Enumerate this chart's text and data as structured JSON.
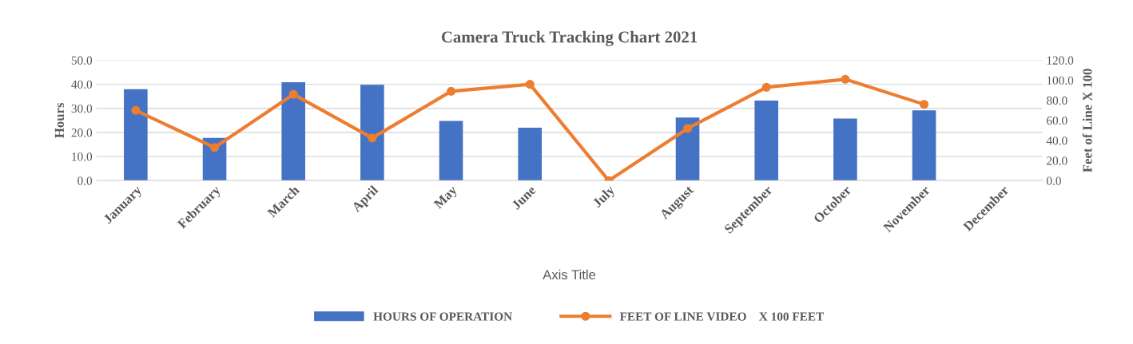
{
  "chart_data": {
    "type": "bar",
    "title": "Camera Truck Tracking Chart 2021",
    "xlabel": "Axis Title",
    "ylabel": "Hours",
    "y2label": "Feet of Line X 100",
    "categories": [
      "January",
      "February",
      "March",
      "April",
      "May",
      "June",
      "July",
      "August",
      "September",
      "October",
      "November",
      "December"
    ],
    "series": [
      {
        "name": "HOURS OF OPERATION",
        "color": "#4472c4",
        "values": [
          38,
          17.7,
          40.9,
          39.8,
          24.8,
          22,
          null,
          26.2,
          33.2,
          25.8,
          29.2,
          null
        ]
      },
      {
        "name": "FEET OF LINE VIDEO    X 100 FEET",
        "type": "line",
        "axis": "y2",
        "color": "#ed7d31",
        "marker": "circle",
        "values": [
          70,
          33,
          86,
          42.5,
          89,
          96,
          0,
          52,
          93,
          101,
          76,
          null
        ]
      }
    ],
    "ylim": [
      0,
      50
    ],
    "yticks": [
      {
        "value": 0,
        "label": "0.0"
      },
      {
        "value": 10,
        "label": "10.0"
      },
      {
        "value": 20,
        "label": "20.0"
      },
      {
        "value": 30,
        "label": "30.0"
      },
      {
        "value": 40,
        "label": "40.0"
      },
      {
        "value": 50,
        "label": "50.0"
      }
    ],
    "y2lim": [
      0,
      120
    ],
    "y2ticks": [
      {
        "value": 0,
        "label": "0.0"
      },
      {
        "value": 20,
        "label": "20.0"
      },
      {
        "value": 40,
        "label": "40.0"
      },
      {
        "value": 60,
        "label": "60.0"
      },
      {
        "value": 80,
        "label": "80.0"
      },
      {
        "value": 100,
        "label": "100.0"
      },
      {
        "value": 120,
        "label": "120.0"
      }
    ],
    "grid": "y",
    "legend": "bottom"
  }
}
